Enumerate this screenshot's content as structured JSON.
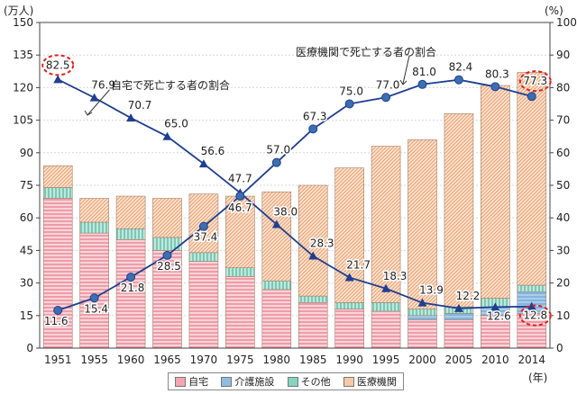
{
  "chart_data": {
    "type": "bar+line",
    "title": "",
    "categories": [
      "1951",
      "1955",
      "1960",
      "1965",
      "1970",
      "1975",
      "1980",
      "1985",
      "1990",
      "1995",
      "2000",
      "2005",
      "2010",
      "2014"
    ],
    "ylabel_left": "(万人)",
    "ylabel_right": "(%)",
    "xlabel": "(年)",
    "ylim_left": [
      0,
      150
    ],
    "ylim_right": [
      0,
      100
    ],
    "left_ticks": [
      0,
      15,
      30,
      45,
      60,
      75,
      90,
      105,
      120,
      135,
      150
    ],
    "right_ticks": [
      0,
      10,
      20,
      30,
      40,
      50,
      60,
      70,
      80,
      90,
      100
    ],
    "stacked_bars": [
      {
        "name": "自宅",
        "color": "#f4a6ae",
        "values": [
          69,
          53,
          50,
          45,
          40,
          33,
          27,
          21,
          18,
          17,
          13,
          13,
          15,
          16
        ]
      },
      {
        "name": "介護施設",
        "color": "#8fbde0",
        "values": [
          0,
          0,
          0,
          0,
          0,
          0,
          0,
          0,
          0,
          0,
          2,
          3,
          4,
          10
        ]
      },
      {
        "name": "その他",
        "color": "#86d3c1",
        "values": [
          5,
          5,
          5,
          6,
          4,
          4,
          4,
          3,
          3,
          4,
          3,
          3,
          4,
          3
        ]
      },
      {
        "name": "医療機関",
        "color": "#f8c9a8",
        "values": [
          10,
          11,
          15,
          18,
          27,
          33,
          41,
          51,
          62,
          72,
          78,
          89,
          98,
          98
        ]
      }
    ],
    "lines": [
      {
        "name": "自宅で死亡する者の割合",
        "marker": "triangle",
        "values": [
          82.5,
          76.9,
          70.7,
          65.0,
          56.6,
          47.7,
          38.0,
          28.3,
          21.7,
          18.3,
          13.9,
          12.2,
          12.6,
          12.8
        ]
      },
      {
        "name": "医療機関で死亡する者の割合",
        "marker": "circle",
        "values": [
          11.6,
          15.4,
          21.8,
          28.5,
          37.4,
          46.7,
          57.0,
          67.3,
          75.0,
          77.0,
          81.0,
          82.4,
          80.3,
          77.3
        ]
      }
    ],
    "data_labels": {
      "home": [
        "82.5",
        "76.9",
        "70.7",
        "65.0",
        "56.6",
        "47.7",
        "38.0",
        "28.3",
        "21.7",
        "18.3",
        "13.9",
        "12.2",
        "12.6",
        "12.8"
      ],
      "hospital": [
        "11.6",
        "15.4",
        "21.8",
        "28.5",
        "37.4",
        "46.7",
        "57.0",
        "67.3",
        "75.0",
        "77.0",
        "81.0",
        "82.4",
        "80.3",
        "77.3"
      ]
    },
    "annotations": {
      "home_line": "自宅で死亡する者の割合",
      "hospital_line": "医療機関で死亡する者の割合"
    },
    "colors": {
      "line": "#1f3f8f",
      "hospital_marker": "#3a6fb0",
      "highlight": "#e02020",
      "axis": "#444444",
      "bar_stroke": "#a0806a"
    }
  }
}
